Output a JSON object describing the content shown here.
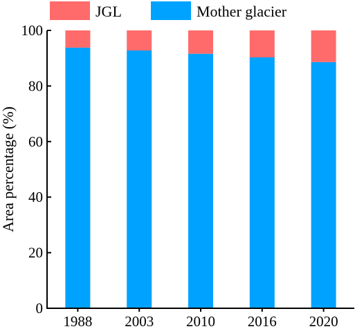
{
  "chart_data": {
    "type": "bar",
    "stacked": true,
    "categories": [
      "1988",
      "2003",
      "2010",
      "2016",
      "2020"
    ],
    "series": [
      {
        "name": "Mother glacier",
        "values": [
          93.8,
          92.8,
          91.6,
          90.3,
          88.6
        ],
        "color": "#00a2ff"
      },
      {
        "name": "JGL",
        "values": [
          6.2,
          7.2,
          8.4,
          9.7,
          11.4
        ],
        "color": "#ff6b6b"
      }
    ],
    "title": "",
    "xlabel": "",
    "ylabel": "Area percentage (%)",
    "ylim": [
      0,
      100
    ],
    "yticks": [
      0,
      20,
      40,
      60,
      80,
      100
    ],
    "grid": false,
    "legend": {
      "placement": "top",
      "entries": [
        {
          "label": "JGL",
          "color": "#ff6b6b"
        },
        {
          "label": "Mother glacier",
          "color": "#00a2ff"
        }
      ]
    }
  }
}
